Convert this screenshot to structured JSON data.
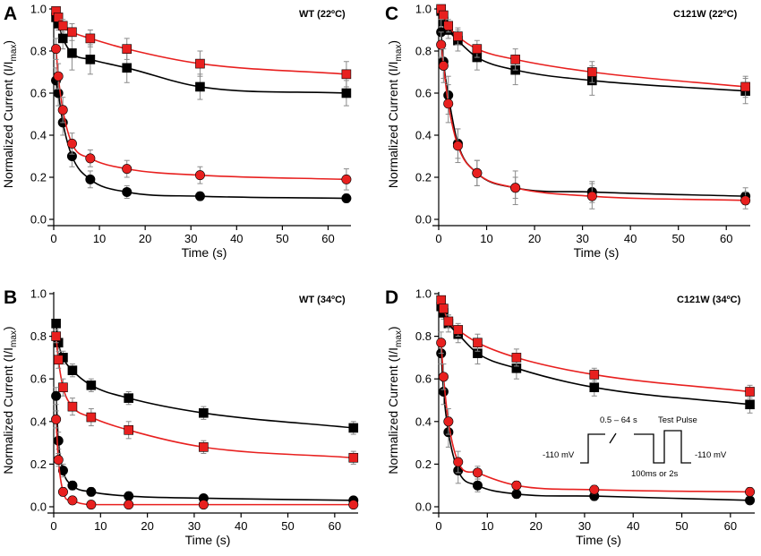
{
  "figure": {
    "time_unit": "s"
  },
  "protocol_inset": {
    "hold_left": "-110 mV",
    "duration_range": "0.5 – 64 s",
    "test_pulse": "Test Pulse",
    "interval": "100ms or 2s",
    "hold_right": "-110 mV"
  },
  "chart_data": [
    {
      "id": "A",
      "type": "scatter",
      "panel_label": "A",
      "title": "WT (22ºC)",
      "xlabel": "Time (s)",
      "ylabel_main": "Normalized Current (I/I",
      "ylabel_sub": "max",
      "ylabel_end": ")",
      "xlim": [
        0,
        65
      ],
      "ylim": [
        0,
        1.0
      ],
      "xticks": [
        0,
        10,
        20,
        30,
        40,
        50,
        60
      ],
      "yticks": [
        0.0,
        0.2,
        0.4,
        0.6,
        0.8,
        1.0
      ],
      "x": [
        0.5,
        1,
        2,
        4,
        8,
        16,
        32,
        64
      ],
      "series": [
        {
          "name": "black squares",
          "marker": "square",
          "color": "#000000",
          "values": [
            0.96,
            0.93,
            0.86,
            0.79,
            0.76,
            0.72,
            0.63,
            0.6
          ],
          "errors": [
            0.02,
            0.03,
            0.05,
            0.08,
            0.07,
            0.07,
            0.06,
            0.06
          ]
        },
        {
          "name": "red squares",
          "marker": "square",
          "color": "#e8201f",
          "values": [
            0.99,
            0.96,
            0.92,
            0.89,
            0.86,
            0.81,
            0.74,
            0.69
          ],
          "errors": [
            0.01,
            0.02,
            0.03,
            0.04,
            0.04,
            0.05,
            0.06,
            0.06
          ]
        },
        {
          "name": "black circles",
          "marker": "circle",
          "color": "#000000",
          "values": [
            0.66,
            0.6,
            0.46,
            0.3,
            0.19,
            0.13,
            0.11,
            0.1
          ],
          "errors": [
            0.06,
            0.06,
            0.06,
            0.05,
            0.04,
            0.03,
            0.02,
            0.02
          ]
        },
        {
          "name": "red circles",
          "marker": "circle",
          "color": "#e8201f",
          "values": [
            0.81,
            0.68,
            0.52,
            0.36,
            0.29,
            0.24,
            0.21,
            0.19
          ],
          "errors": [
            0.05,
            0.06,
            0.06,
            0.05,
            0.04,
            0.04,
            0.04,
            0.05
          ]
        }
      ]
    },
    {
      "id": "C",
      "type": "scatter",
      "panel_label": "C",
      "title": "C121W (22ºC)",
      "xlabel": "Time (s)",
      "ylabel_main": "Normalized Current (I/I",
      "ylabel_sub": "max",
      "ylabel_end": ")",
      "xlim": [
        0,
        65
      ],
      "ylim": [
        0,
        1.0
      ],
      "xticks": [
        0,
        10,
        20,
        30,
        40,
        50,
        60
      ],
      "yticks": [
        0.0,
        0.2,
        0.4,
        0.6,
        0.8,
        1.0
      ],
      "x": [
        0.5,
        1,
        2,
        4,
        8,
        16,
        32,
        64
      ],
      "series": [
        {
          "name": "black squares",
          "marker": "square",
          "color": "#000000",
          "values": [
            0.99,
            0.94,
            0.9,
            0.85,
            0.77,
            0.71,
            0.66,
            0.61
          ],
          "errors": [
            0.02,
            0.03,
            0.04,
            0.05,
            0.06,
            0.07,
            0.07,
            0.06
          ]
        },
        {
          "name": "red squares",
          "marker": "square",
          "color": "#e8201f",
          "values": [
            1.0,
            0.97,
            0.92,
            0.87,
            0.81,
            0.76,
            0.7,
            0.63
          ],
          "errors": [
            0.01,
            0.02,
            0.03,
            0.04,
            0.04,
            0.05,
            0.05,
            0.05
          ]
        },
        {
          "name": "black circles",
          "marker": "circle",
          "color": "#000000",
          "values": [
            0.89,
            0.75,
            0.59,
            0.36,
            0.22,
            0.15,
            0.13,
            0.11
          ],
          "errors": [
            0.06,
            0.08,
            0.09,
            0.07,
            0.06,
            0.05,
            0.05,
            0.04
          ]
        },
        {
          "name": "red circles",
          "marker": "circle",
          "color": "#e8201f",
          "values": [
            0.83,
            0.73,
            0.55,
            0.35,
            0.22,
            0.15,
            0.11,
            0.09
          ],
          "errors": [
            0.06,
            0.08,
            0.09,
            0.08,
            0.06,
            0.08,
            0.06,
            0.04
          ]
        }
      ]
    },
    {
      "id": "B",
      "type": "scatter",
      "panel_label": "B",
      "title": "WT (34ºC)",
      "xlabel": "Time (s)",
      "ylabel_main": "Normalized Current (I/I",
      "ylabel_sub": "max",
      "ylabel_end": ")",
      "xlim": [
        0,
        65
      ],
      "ylim": [
        0,
        1.0
      ],
      "xticks": [
        0,
        10,
        20,
        30,
        40,
        50,
        60
      ],
      "yticks": [
        0.0,
        0.2,
        0.4,
        0.6,
        0.8,
        1.0
      ],
      "x": [
        0.5,
        1,
        2,
        4,
        8,
        16,
        32,
        64
      ],
      "series": [
        {
          "name": "black squares",
          "marker": "square",
          "color": "#000000",
          "values": [
            0.86,
            0.77,
            0.7,
            0.64,
            0.57,
            0.51,
            0.44,
            0.37
          ],
          "errors": [
            0.02,
            0.03,
            0.03,
            0.03,
            0.03,
            0.03,
            0.03,
            0.03
          ]
        },
        {
          "name": "red squares",
          "marker": "square",
          "color": "#e8201f",
          "values": [
            0.8,
            0.69,
            0.56,
            0.47,
            0.42,
            0.36,
            0.28,
            0.23
          ],
          "errors": [
            0.03,
            0.04,
            0.04,
            0.04,
            0.04,
            0.04,
            0.03,
            0.03
          ]
        },
        {
          "name": "black circles",
          "marker": "circle",
          "color": "#000000",
          "values": [
            0.52,
            0.31,
            0.17,
            0.1,
            0.07,
            0.05,
            0.04,
            0.03
          ],
          "errors": [
            0.04,
            0.04,
            0.03,
            0.02,
            0.02,
            0.02,
            0.01,
            0.01
          ]
        },
        {
          "name": "red circles",
          "marker": "circle",
          "color": "#e8201f",
          "values": [
            0.41,
            0.22,
            0.07,
            0.03,
            0.01,
            0.01,
            0.01,
            0.01
          ],
          "errors": [
            0.04,
            0.03,
            0.02,
            0.01,
            0.01,
            0.01,
            0.01,
            0.01
          ]
        }
      ]
    },
    {
      "id": "D",
      "type": "scatter",
      "panel_label": "D",
      "title": "C121W (34ºC)",
      "xlabel": "Time (s)",
      "ylabel_main": "Normalized Current (I/I",
      "ylabel_sub": "max",
      "ylabel_end": ")",
      "xlim": [
        0,
        65
      ],
      "ylim": [
        0,
        1.0
      ],
      "xticks": [
        0,
        10,
        20,
        30,
        40,
        50,
        60
      ],
      "yticks": [
        0.0,
        0.2,
        0.4,
        0.6,
        0.8,
        1.0
      ],
      "x": [
        0.5,
        1,
        2,
        4,
        8,
        16,
        32,
        64
      ],
      "series": [
        {
          "name": "black squares",
          "marker": "square",
          "color": "#000000",
          "values": [
            0.94,
            0.91,
            0.86,
            0.81,
            0.72,
            0.65,
            0.56,
            0.48
          ],
          "errors": [
            0.02,
            0.03,
            0.04,
            0.04,
            0.05,
            0.05,
            0.04,
            0.04
          ]
        },
        {
          "name": "red squares",
          "marker": "square",
          "color": "#e8201f",
          "values": [
            0.97,
            0.93,
            0.87,
            0.83,
            0.77,
            0.7,
            0.62,
            0.54
          ],
          "errors": [
            0.01,
            0.02,
            0.03,
            0.03,
            0.04,
            0.04,
            0.03,
            0.03
          ]
        },
        {
          "name": "black circles",
          "marker": "circle",
          "color": "#000000",
          "values": [
            0.72,
            0.54,
            0.35,
            0.17,
            0.1,
            0.06,
            0.05,
            0.03
          ],
          "errors": [
            0.05,
            0.06,
            0.07,
            0.06,
            0.03,
            0.02,
            0.02,
            0.01
          ]
        },
        {
          "name": "red circles",
          "marker": "circle",
          "color": "#e8201f",
          "values": [
            0.77,
            0.61,
            0.4,
            0.21,
            0.16,
            0.1,
            0.08,
            0.07
          ],
          "errors": [
            0.05,
            0.06,
            0.06,
            0.05,
            0.03,
            0.02,
            0.02,
            0.02
          ]
        }
      ]
    }
  ]
}
